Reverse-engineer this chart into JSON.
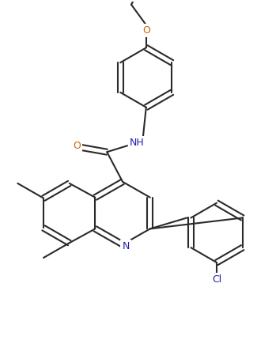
{
  "bg_color": "#ffffff",
  "line_color": "#2a2a2a",
  "atom_colors": {
    "O": "#cc6600",
    "N": "#2020aa",
    "Cl": "#2020aa",
    "C": "#2a2a2a"
  },
  "line_width": 1.5,
  "dpi": 100,
  "figsize": [
    3.25,
    4.3
  ]
}
